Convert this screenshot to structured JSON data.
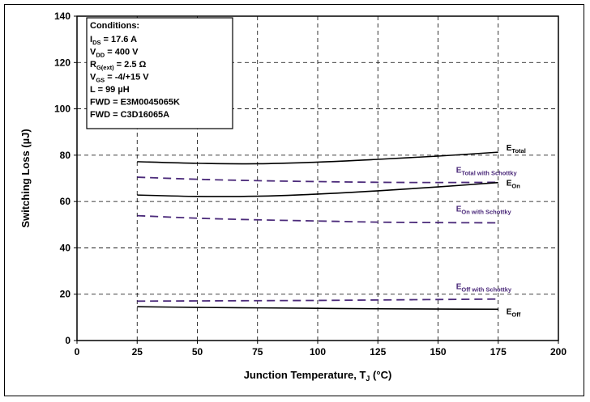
{
  "chart_data": {
    "type": "line",
    "xlabel_main": "Junction Temperature, T",
    "xlabel_sub": "J",
    "xlabel_unit": " (°C)",
    "ylabel": "Switching Loss (µJ)",
    "xlim": [
      0,
      200
    ],
    "ylim": [
      0,
      140
    ],
    "x_ticks": [
      "0",
      "25",
      "50",
      "75",
      "100",
      "125",
      "150",
      "175",
      "200"
    ],
    "y_ticks": [
      "0",
      "20",
      "40",
      "60",
      "80",
      "100",
      "120",
      "140"
    ],
    "grid": true,
    "x": [
      25,
      50,
      75,
      100,
      125,
      150,
      175
    ],
    "series": [
      {
        "label_main": "E",
        "label_sub": "Total",
        "style": "solid",
        "color": "#000000",
        "values": [
          77.2,
          76.5,
          76.3,
          77.0,
          78.2,
          79.6,
          81.3
        ]
      },
      {
        "label_main": "E",
        "label_sub": "Total with Schottky",
        "style": "dashed",
        "color": "#4b2a7a",
        "values": [
          70.5,
          69.6,
          69.0,
          68.6,
          68.3,
          68.2,
          68.3
        ]
      },
      {
        "label_main": "E",
        "label_sub": "On",
        "style": "solid",
        "color": "#000000",
        "values": [
          62.8,
          62.2,
          62.3,
          63.2,
          64.6,
          66.3,
          68.2
        ]
      },
      {
        "label_main": "E",
        "label_sub": "On with Schottky",
        "style": "dashed",
        "color": "#4b2a7a",
        "values": [
          53.9,
          52.8,
          52.1,
          51.6,
          51.1,
          50.9,
          50.8
        ]
      },
      {
        "label_main": "E",
        "label_sub": "Off with Schottky",
        "style": "dashed",
        "color": "#4b2a7a",
        "values": [
          17.0,
          17.1,
          17.2,
          17.3,
          17.5,
          17.7,
          17.9
        ]
      },
      {
        "label_main": "E",
        "label_sub": "Off",
        "style": "solid",
        "color": "#000000",
        "values": [
          14.6,
          14.3,
          14.1,
          13.9,
          13.7,
          13.6,
          13.5
        ]
      }
    ],
    "annotation": {
      "title": "Conditions:",
      "lines": [
        {
          "main": "I",
          "sub": "DS",
          "rest": " =  17.6 A",
          "color": "#000000"
        },
        {
          "main": "V",
          "sub": "DD",
          "rest": " =  400 V",
          "color": "#000000"
        },
        {
          "main": "R",
          "sub": "G(ext)",
          "rest": " =  2.5 Ω",
          "color": "#000000"
        },
        {
          "main": "V",
          "sub": "GS",
          "rest": " =  -4/+15 V",
          "color": "#000000"
        },
        {
          "main": "L",
          "sub": "",
          "rest": " =  99 µH",
          "color": "#000000"
        },
        {
          "main": "FWD",
          "sub": "",
          "rest": " =  E3M0045065K",
          "color": "#000000"
        },
        {
          "main": "FWD",
          "sub": "",
          "rest": " =  C3D16065A",
          "color": "#4b2a7a"
        }
      ]
    }
  }
}
